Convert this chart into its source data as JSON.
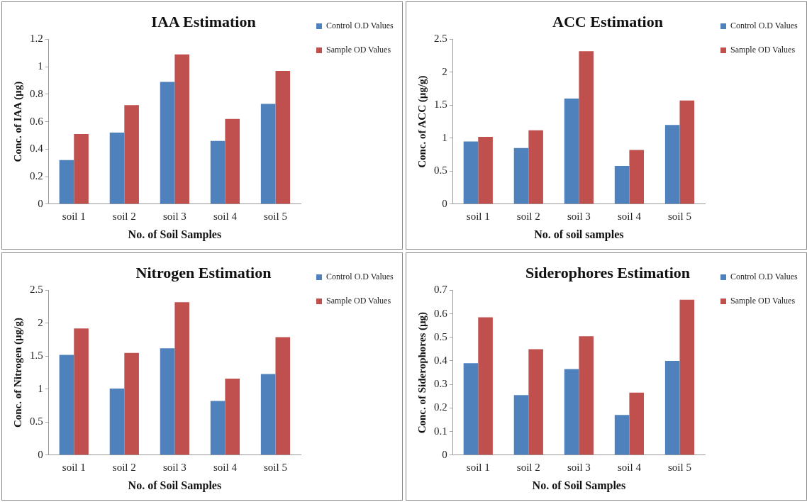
{
  "chart_data": [
    {
      "type": "bar",
      "title": "IAA Estimation",
      "xlabel": "No. of Soil Samples",
      "ylabel": "Conc. of IAA (µg)",
      "categories": [
        "soil 1",
        "soil 2",
        "soil 3",
        "soil 4",
        "soil 5"
      ],
      "series": [
        {
          "name": "Control O.D Values",
          "color": "#4f81bd",
          "values": [
            0.32,
            0.52,
            0.89,
            0.46,
            0.73
          ]
        },
        {
          "name": "Sample OD Values",
          "color": "#c0504d",
          "values": [
            0.51,
            0.72,
            1.09,
            0.62,
            0.97
          ]
        }
      ],
      "ylim": [
        0,
        1.2
      ],
      "yticks": [
        0,
        0.2,
        0.4,
        0.6,
        0.8,
        1,
        1.2
      ],
      "grid": false,
      "legend": "top right"
    },
    {
      "type": "bar",
      "title": "ACC Estimation",
      "xlabel": "No. of soil samples",
      "ylabel": "Conc. of ACC (µg/g)",
      "categories": [
        "soil 1",
        "soil 2",
        "soil 3",
        "soil 4",
        "soil 5"
      ],
      "series": [
        {
          "name": "Control O.D Values",
          "color": "#4f81bd",
          "values": [
            0.95,
            0.85,
            1.6,
            0.58,
            1.2
          ]
        },
        {
          "name": "Sample OD Values",
          "color": "#c0504d",
          "values": [
            1.02,
            1.12,
            2.32,
            0.82,
            1.57
          ]
        }
      ],
      "ylim": [
        0,
        2.5
      ],
      "yticks": [
        0,
        0.5,
        1,
        1.5,
        2,
        2.5
      ],
      "grid": false,
      "legend": "top right"
    },
    {
      "type": "bar",
      "title": "Nitrogen Estimation",
      "xlabel": "No. of Soil Samples",
      "ylabel": "Conc. of Nitrogen (µg/g)",
      "categories": [
        "soil 1",
        "soil 2",
        "soil 3",
        "soil 4",
        "soil 5"
      ],
      "series": [
        {
          "name": "Control O.D Values",
          "color": "#4f81bd",
          "values": [
            1.52,
            1.01,
            1.62,
            0.82,
            1.23
          ]
        },
        {
          "name": "Sample OD Values",
          "color": "#c0504d",
          "values": [
            1.92,
            1.55,
            2.32,
            1.16,
            1.79
          ]
        }
      ],
      "ylim": [
        0,
        2.5
      ],
      "yticks": [
        0,
        0.5,
        1,
        1.5,
        2,
        2.5
      ],
      "grid": false,
      "legend": "top right"
    },
    {
      "type": "bar",
      "title": "Siderophores Estimation",
      "xlabel": "No. of Soil Samples",
      "ylabel": "Conc. of Siderophores (µg)",
      "categories": [
        "soil 1",
        "soil 2",
        "soil 3",
        "soil 4",
        "soil 5"
      ],
      "series": [
        {
          "name": "Control O.D Values",
          "color": "#4f81bd",
          "values": [
            0.39,
            0.255,
            0.365,
            0.17,
            0.4
          ]
        },
        {
          "name": "Sample OD Values",
          "color": "#c0504d",
          "values": [
            0.585,
            0.45,
            0.505,
            0.265,
            0.66
          ]
        }
      ],
      "ylim": [
        0,
        0.7
      ],
      "yticks": [
        0,
        0.1,
        0.2,
        0.3,
        0.4,
        0.5,
        0.6,
        0.7
      ],
      "grid": false,
      "legend": "top right"
    }
  ]
}
